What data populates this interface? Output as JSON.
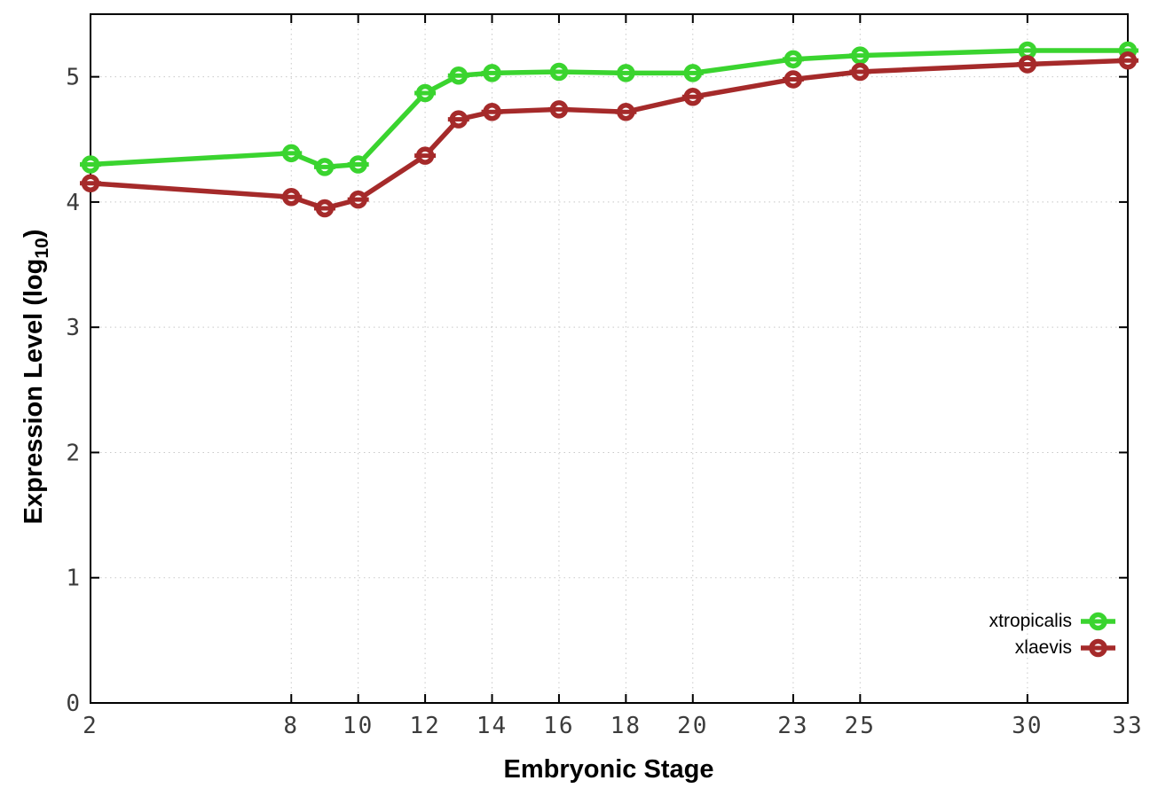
{
  "page": {
    "background": "#ffffff"
  },
  "axis_titles": {
    "x": "Embryonic Stage",
    "y_prefix": "Expression Level (log",
    "y_sub": "10",
    "y_suffix": ")"
  },
  "chart_data": {
    "type": "line",
    "title": "",
    "xlabel": "Embryonic Stage",
    "ylabel": "Expression Level (log10)",
    "x_tick_labels": [
      2,
      8,
      10,
      12,
      14,
      16,
      18,
      20,
      23,
      25,
      30,
      33
    ],
    "y_tick_labels": [
      0,
      1,
      2,
      3,
      4,
      5
    ],
    "xlim": [
      2,
      33
    ],
    "ylim": [
      0,
      5.5
    ],
    "grid": true,
    "grid_style": "dotted",
    "legend_position": "inside-bottom-right",
    "marker_style": "open-circle-with-horizontal-bar",
    "x": [
      2,
      8,
      9,
      10,
      12,
      13,
      14,
      16,
      18,
      20,
      23,
      25,
      30,
      33
    ],
    "series": [
      {
        "name": "xtropicalis",
        "color": "#3ad42f",
        "values": [
          4.3,
          4.39,
          4.28,
          4.3,
          4.87,
          5.01,
          5.03,
          5.04,
          5.03,
          5.03,
          5.14,
          5.17,
          5.21,
          5.21
        ]
      },
      {
        "name": "xlaevis",
        "color": "#a52a2a",
        "values": [
          4.15,
          4.04,
          3.95,
          4.02,
          4.37,
          4.66,
          4.72,
          4.74,
          4.72,
          4.84,
          4.98,
          5.04,
          5.1,
          5.13
        ]
      }
    ],
    "colors": {
      "axis": "#000000",
      "grid": "#c8c8c8",
      "tick_text": "#3c3c3c",
      "marker_fill": "#ffffff"
    }
  }
}
